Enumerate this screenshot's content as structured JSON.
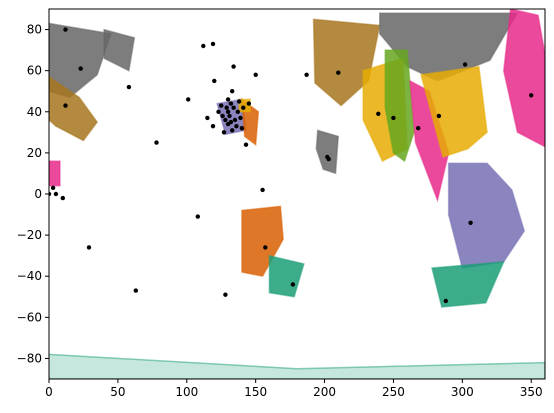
{
  "chart_data": {
    "type": "scatter",
    "title": "",
    "xlabel": "",
    "ylabel": "",
    "xlim": [
      0,
      360
    ],
    "ylim": [
      -90,
      90
    ],
    "grid": false,
    "legend": "none",
    "x_ticks": [
      0,
      50,
      100,
      150,
      200,
      250,
      300,
      350
    ],
    "y_ticks": [
      -80,
      -60,
      -40,
      -20,
      0,
      20,
      40,
      60,
      80
    ],
    "colors": {
      "teal": "#1b9e77",
      "orange": "#d95f02",
      "purple": "#7570b3",
      "magenta": "#e7298a",
      "green": "#66a61e",
      "gold": "#e6ab02",
      "brown": "#a6761d",
      "gray": "#666666",
      "point": "#000000"
    },
    "regions": [
      {
        "color": "gray",
        "polygon": [
          [
            0,
            83
          ],
          [
            45,
            78
          ],
          [
            35,
            58
          ],
          [
            15,
            47
          ],
          [
            0,
            50
          ]
        ]
      },
      {
        "color": "gray",
        "polygon": [
          [
            40,
            80
          ],
          [
            62,
            76
          ],
          [
            58,
            60
          ],
          [
            40,
            66
          ]
        ]
      },
      {
        "color": "brown",
        "polygon": [
          [
            0,
            57
          ],
          [
            22,
            47
          ],
          [
            35,
            35
          ],
          [
            25,
            26
          ],
          [
            5,
            33
          ],
          [
            0,
            36
          ]
        ]
      },
      {
        "color": "brown",
        "polygon": [
          [
            192,
            85
          ],
          [
            240,
            82
          ],
          [
            232,
            55
          ],
          [
            212,
            43
          ],
          [
            193,
            54
          ]
        ]
      },
      {
        "color": "gray",
        "polygon": [
          [
            240,
            88
          ],
          [
            340,
            88
          ],
          [
            320,
            65
          ],
          [
            282,
            55
          ],
          [
            260,
            62
          ],
          [
            240,
            78
          ]
        ]
      },
      {
        "color": "gold",
        "polygon": [
          [
            228,
            60
          ],
          [
            257,
            66
          ],
          [
            260,
            22
          ],
          [
            242,
            16
          ],
          [
            228,
            36
          ]
        ]
      },
      {
        "color": "green",
        "polygon": [
          [
            244,
            70
          ],
          [
            260,
            70
          ],
          [
            265,
            30
          ],
          [
            258,
            16
          ],
          [
            250,
            20
          ],
          [
            244,
            42
          ]
        ]
      },
      {
        "color": "magenta",
        "polygon": [
          [
            262,
            55
          ],
          [
            276,
            50
          ],
          [
            290,
            20
          ],
          [
            282,
            -3
          ],
          [
            266,
            25
          ]
        ]
      },
      {
        "color": "gold",
        "polygon": [
          [
            270,
            58
          ],
          [
            312,
            62
          ],
          [
            318,
            30
          ],
          [
            304,
            22
          ],
          [
            286,
            18
          ]
        ]
      },
      {
        "color": "magenta",
        "polygon": [
          [
            335,
            90
          ],
          [
            355,
            87
          ],
          [
            360,
            68
          ],
          [
            360,
            23
          ],
          [
            340,
            30
          ],
          [
            330,
            60
          ]
        ]
      },
      {
        "color": "purple",
        "polygon": [
          [
            290,
            15
          ],
          [
            318,
            15
          ],
          [
            336,
            2
          ],
          [
            345,
            -18
          ],
          [
            330,
            -33
          ],
          [
            300,
            -36
          ],
          [
            290,
            -10
          ]
        ]
      },
      {
        "color": "teal",
        "polygon": [
          [
            278,
            -36
          ],
          [
            330,
            -33
          ],
          [
            317,
            -53
          ],
          [
            285,
            -55
          ]
        ]
      },
      {
        "color": "orange",
        "polygon": [
          [
            140,
            -8
          ],
          [
            168,
            -6
          ],
          [
            170,
            -22
          ],
          [
            155,
            -40
          ],
          [
            140,
            -38
          ]
        ]
      },
      {
        "color": "teal",
        "polygon": [
          [
            160,
            -30
          ],
          [
            185,
            -34
          ],
          [
            178,
            -50
          ],
          [
            160,
            -48
          ]
        ]
      },
      {
        "color": "gray",
        "polygon": [
          [
            195,
            31
          ],
          [
            210,
            28
          ],
          [
            208,
            10
          ],
          [
            199,
            12
          ],
          [
            194,
            22
          ]
        ]
      },
      {
        "color": "purple",
        "polygon": [
          [
            122,
            44
          ],
          [
            140,
            46
          ],
          [
            143,
            31
          ],
          [
            128,
            29
          ]
        ]
      },
      {
        "color": "orange",
        "polygon": [
          [
            140,
            46
          ],
          [
            152,
            40
          ],
          [
            150,
            24
          ],
          [
            142,
            28
          ]
        ]
      },
      {
        "color": "gold",
        "polygon": [
          [
            138,
            46
          ],
          [
            146,
            46
          ],
          [
            146,
            40
          ],
          [
            138,
            40
          ]
        ]
      },
      {
        "color": "magenta",
        "polygon": [
          [
            0,
            16
          ],
          [
            8,
            16
          ],
          [
            8,
            4
          ],
          [
            0,
            4
          ]
        ]
      },
      {
        "color": "teal",
        "polygon": [
          [
            -1,
            -78
          ],
          [
            180,
            -85
          ],
          [
            360,
            -82
          ],
          [
            360,
            -90
          ],
          [
            0,
            -90
          ]
        ]
      }
    ],
    "points": [
      [
        12,
        80
      ],
      [
        23,
        61
      ],
      [
        12,
        43
      ],
      [
        0,
        0
      ],
      [
        3,
        3
      ],
      [
        5,
        0
      ],
      [
        10,
        -2
      ],
      [
        29,
        -26
      ],
      [
        58,
        52
      ],
      [
        78,
        25
      ],
      [
        63,
        -47
      ],
      [
        101,
        46
      ],
      [
        108,
        -11
      ],
      [
        112,
        72
      ],
      [
        115,
        37
      ],
      [
        119,
        73
      ],
      [
        120,
        55
      ],
      [
        119,
        33
      ],
      [
        123,
        40
      ],
      [
        125,
        43
      ],
      [
        126,
        38
      ],
      [
        127,
        30
      ],
      [
        128,
        36
      ],
      [
        129,
        42
      ],
      [
        130,
        34
      ],
      [
        130,
        46
      ],
      [
        130,
        40
      ],
      [
        131,
        38
      ],
      [
        132,
        35
      ],
      [
        132,
        44
      ],
      [
        133,
        50
      ],
      [
        133,
        31
      ],
      [
        134,
        62
      ],
      [
        134,
        42
      ],
      [
        135,
        36
      ],
      [
        136,
        33
      ],
      [
        137,
        40
      ],
      [
        138,
        45
      ],
      [
        139,
        37
      ],
      [
        140,
        32
      ],
      [
        141,
        42
      ],
      [
        143,
        24
      ],
      [
        145,
        44
      ],
      [
        150,
        58
      ],
      [
        155,
        2
      ],
      [
        157,
        -26
      ],
      [
        177,
        -44
      ],
      [
        128,
        -49
      ],
      [
        187,
        58
      ],
      [
        202,
        18
      ],
      [
        203,
        17
      ],
      [
        210,
        59
      ],
      [
        239,
        39
      ],
      [
        250,
        37
      ],
      [
        268,
        32
      ],
      [
        283,
        38
      ],
      [
        302,
        63
      ],
      [
        306,
        -14
      ],
      [
        288,
        -52
      ],
      [
        350,
        48
      ]
    ]
  }
}
